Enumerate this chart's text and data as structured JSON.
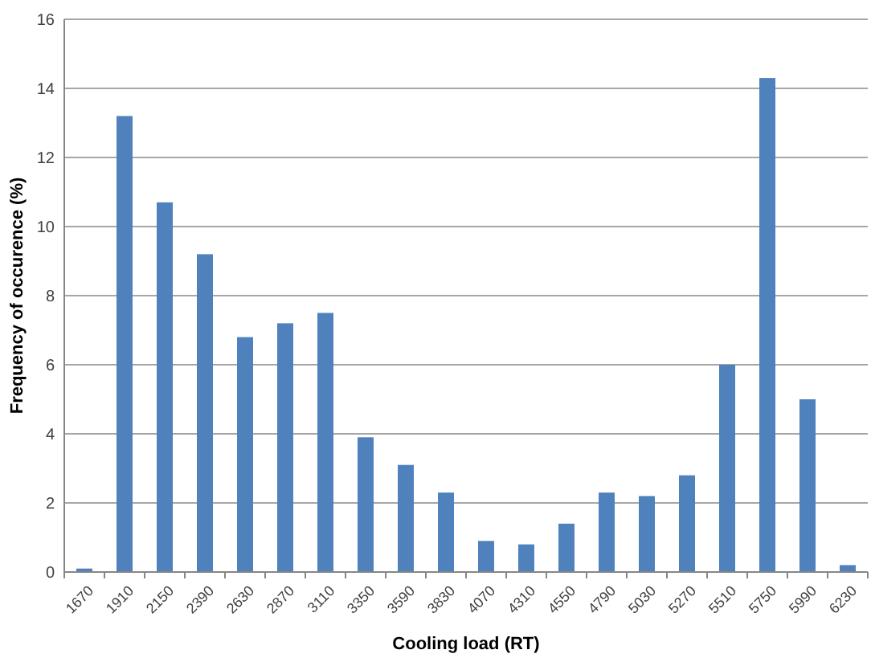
{
  "chart_data": {
    "type": "bar",
    "xlabel": "Cooling load (RT)",
    "ylabel": "Frequency of occurence (%)",
    "categories": [
      "1670",
      "1910",
      "2150",
      "2390",
      "2630",
      "2870",
      "3110",
      "3350",
      "3590",
      "3830",
      "4070",
      "4310",
      "4550",
      "4790",
      "5030",
      "5270",
      "5510",
      "5750",
      "5990",
      "6230"
    ],
    "values": [
      0.1,
      13.2,
      10.7,
      9.2,
      6.8,
      7.2,
      7.5,
      3.9,
      3.1,
      2.3,
      0.9,
      0.8,
      1.4,
      2.3,
      2.2,
      2.8,
      6.0,
      14.3,
      5.0,
      0.2
    ],
    "color": "#4f81bd",
    "ylim": [
      0,
      16
    ],
    "yticks": [
      0,
      2,
      4,
      6,
      8,
      10,
      12,
      14,
      16
    ],
    "grid": "y"
  }
}
